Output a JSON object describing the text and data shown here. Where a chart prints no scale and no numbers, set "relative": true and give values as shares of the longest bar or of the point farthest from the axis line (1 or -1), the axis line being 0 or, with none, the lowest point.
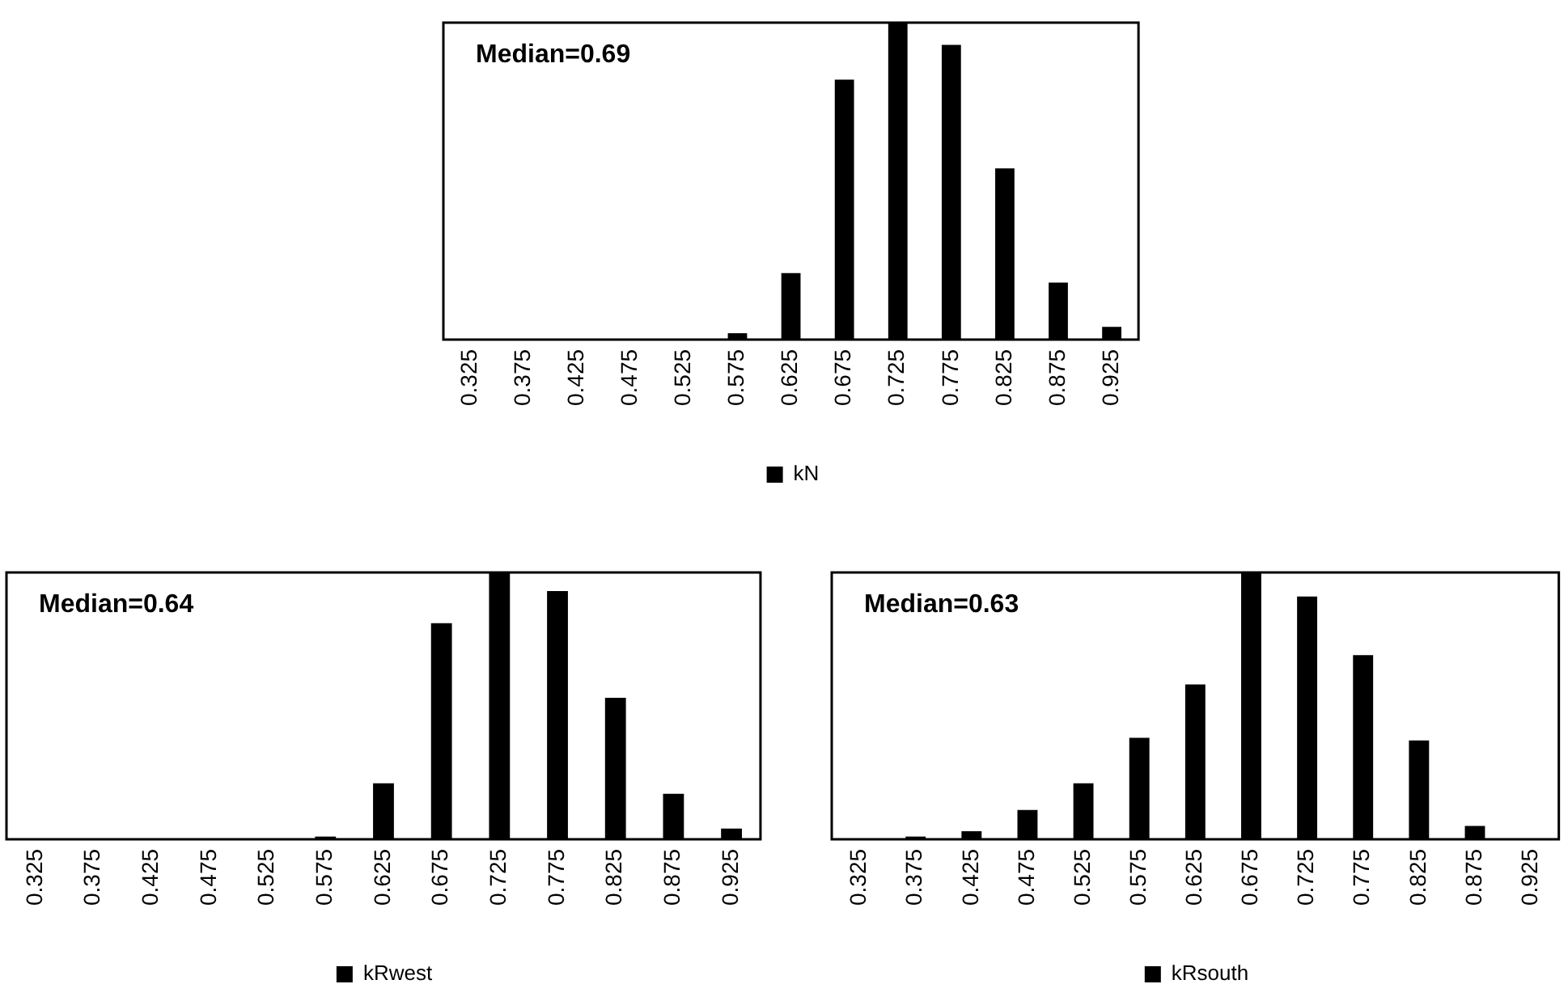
{
  "chart_data": [
    {
      "type": "bar",
      "relative": true,
      "categories": [
        "0.325",
        "0.375",
        "0.425",
        "0.475",
        "0.525",
        "0.575",
        "0.625",
        "0.675",
        "0.725",
        "0.775",
        "0.825",
        "0.875",
        "0.925"
      ],
      "series": [
        {
          "name": "kN",
          "color": "#000000",
          "values": [
            0,
            0,
            0,
            0,
            0,
            0.02,
            0.21,
            0.82,
            1,
            0.93,
            0.54,
            0.18,
            0.04
          ]
        }
      ],
      "annotations": [
        "Median=0.69"
      ],
      "legend": "bottom",
      "tick_labels": "x"
    },
    {
      "type": "bar",
      "relative": true,
      "categories": [
        "0.325",
        "0.375",
        "0.425",
        "0.475",
        "0.525",
        "0.575",
        "0.625",
        "0.675",
        "0.725",
        "0.775",
        "0.825",
        "0.875",
        "0.925"
      ],
      "series": [
        {
          "name": "kRwest",
          "color": "#000000",
          "values": [
            0,
            0,
            0,
            0,
            0,
            0.01,
            0.21,
            0.81,
            1,
            0.93,
            0.53,
            0.17,
            0.04
          ]
        }
      ],
      "annotations": [
        "Median=0.64"
      ],
      "legend": "bottom",
      "tick_labels": "x"
    },
    {
      "type": "bar",
      "relative": true,
      "categories": [
        "0.325",
        "0.375",
        "0.425",
        "0.475",
        "0.525",
        "0.575",
        "0.625",
        "0.675",
        "0.725",
        "0.775",
        "0.825",
        "0.875",
        "0.925"
      ],
      "series": [
        {
          "name": "kRsouth",
          "color": "#000000",
          "values": [
            0,
            0.01,
            0.03,
            0.11,
            0.21,
            0.38,
            0.58,
            1,
            0.91,
            0.69,
            0.37,
            0.05,
            0
          ]
        }
      ],
      "annotations": [
        "Median=0.63"
      ],
      "legend": "bottom",
      "tick_labels": "x"
    }
  ]
}
